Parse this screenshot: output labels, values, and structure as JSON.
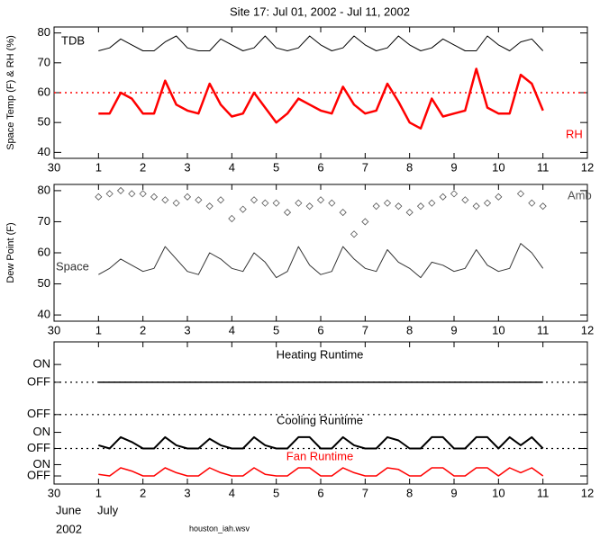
{
  "chart_data": [
    {
      "type": "line",
      "title": "Site 17: Jul 01, 2002 - Jul 11, 2002",
      "ylabel": "Space Temp (F) & RH (%)",
      "xlim": [
        0,
        12
      ],
      "xticks": [
        {
          "value": 0,
          "label": "30"
        },
        1,
        2,
        3,
        4,
        5,
        6,
        7,
        8,
        9,
        10,
        11,
        12
      ],
      "ylim": [
        38,
        82
      ],
      "yticks": [
        40,
        50,
        60,
        70,
        80
      ],
      "hline": 60,
      "hline_color": "#ff0000",
      "x": [
        1,
        1.25,
        1.5,
        1.75,
        2,
        2.25,
        2.5,
        2.75,
        3,
        3.25,
        3.5,
        3.75,
        4,
        4.25,
        4.5,
        4.75,
        5,
        5.25,
        5.5,
        5.75,
        6,
        6.25,
        6.5,
        6.75,
        7,
        7.25,
        7.5,
        7.75,
        8,
        8.25,
        8.5,
        8.75,
        9,
        9.25,
        9.5,
        9.75,
        10,
        10.25,
        10.5,
        10.75,
        11
      ],
      "series": [
        {
          "name": "TDB",
          "color": "#000000",
          "values": [
            74,
            75,
            78,
            76,
            74,
            74,
            77,
            79,
            75,
            74,
            74,
            78,
            76,
            74,
            75,
            79,
            75,
            74,
            75,
            79,
            76,
            74,
            75,
            79,
            76,
            74,
            75,
            79,
            76,
            74,
            75,
            78,
            76,
            74,
            74,
            79,
            76,
            74,
            77,
            78,
            74
          ]
        },
        {
          "name": "RH",
          "color": "#ff0000",
          "values": [
            53,
            53,
            60,
            58,
            53,
            53,
            64,
            56,
            54,
            53,
            63,
            56,
            52,
            53,
            60,
            55,
            50,
            53,
            58,
            56,
            54,
            53,
            62,
            56,
            53,
            54,
            63,
            57,
            50,
            48,
            58,
            52,
            53,
            54,
            68,
            55,
            53,
            53,
            66,
            63,
            54
          ]
        }
      ]
    },
    {
      "type": "line",
      "ylabel": "Dew Point (F)",
      "xlim": [
        0,
        12
      ],
      "xticks": [
        {
          "value": 0,
          "label": "30"
        },
        1,
        2,
        3,
        4,
        5,
        6,
        7,
        8,
        9,
        10,
        11,
        12
      ],
      "ylim": [
        38,
        82
      ],
      "yticks": [
        40,
        50,
        60,
        70,
        80
      ],
      "x": [
        1,
        1.25,
        1.5,
        1.75,
        2,
        2.25,
        2.5,
        2.75,
        3,
        3.25,
        3.5,
        3.75,
        4,
        4.25,
        4.5,
        4.75,
        5,
        5.25,
        5.5,
        5.75,
        6,
        6.25,
        6.5,
        6.75,
        7,
        7.25,
        7.5,
        7.75,
        8,
        8.25,
        8.5,
        8.75,
        9,
        9.25,
        9.5,
        9.75,
        10,
        10.25,
        10.5,
        10.75,
        11
      ],
      "series": [
        {
          "name": "Amb",
          "color": "#555555",
          "style": "markers",
          "values": [
            78,
            79,
            80,
            79,
            79,
            78,
            77,
            76,
            78,
            77,
            75,
            77,
            71,
            74,
            77,
            76,
            76,
            73,
            76,
            75,
            77,
            76,
            73,
            66,
            70,
            75,
            76,
            75,
            73,
            75,
            76,
            78,
            79,
            77,
            75,
            76,
            78,
            null,
            79,
            76,
            75
          ]
        },
        {
          "name": "Space",
          "color": "#333333",
          "style": "line",
          "values": [
            53,
            55,
            58,
            56,
            54,
            55,
            62,
            58,
            54,
            53,
            60,
            58,
            55,
            54,
            60,
            57,
            52,
            54,
            62,
            56,
            53,
            54,
            62,
            58,
            55,
            54,
            61,
            57,
            55,
            52,
            57,
            56,
            54,
            55,
            61,
            56,
            54,
            55,
            63,
            60,
            55
          ]
        }
      ]
    },
    {
      "type": "line",
      "xlim": [
        0,
        12
      ],
      "xticks": [
        {
          "value": 0,
          "label": "30"
        },
        1,
        2,
        3,
        4,
        5,
        6,
        7,
        8,
        9,
        10,
        11,
        12
      ],
      "ylim": [
        0,
        8.8
      ],
      "yticks": [
        {
          "value": 0.5,
          "label": "OFF"
        },
        {
          "value": 1.2,
          "label": "ON"
        },
        {
          "value": 2.2,
          "label": "OFF"
        },
        {
          "value": 3.2,
          "label": "ON"
        },
        {
          "value": 4.3,
          "label": "OFF"
        },
        {
          "value": 6.3,
          "label": "OFF"
        },
        {
          "value": 7.4,
          "label": "ON"
        }
      ],
      "hlines": [
        6.3,
        4.3,
        2.2
      ],
      "month_labels": [
        "June",
        "July"
      ],
      "year_label": "2002",
      "annotation": "houston_iah.wsv",
      "x": [
        1,
        1.25,
        1.5,
        1.75,
        2,
        2.25,
        2.5,
        2.75,
        3,
        3.25,
        3.5,
        3.75,
        4,
        4.25,
        4.5,
        4.75,
        5,
        5.25,
        5.5,
        5.75,
        6,
        6.25,
        6.5,
        6.75,
        7,
        7.25,
        7.5,
        7.75,
        8,
        8.25,
        8.5,
        8.75,
        9,
        9.25,
        9.5,
        9.75,
        10,
        10.25,
        10.5,
        10.75,
        11
      ],
      "series": [
        {
          "name": "Heating Runtime",
          "color": "#000000",
          "values": [
            6.3,
            6.3,
            6.3,
            6.3,
            6.3,
            6.3,
            6.3,
            6.3,
            6.3,
            6.3,
            6.3,
            6.3,
            6.3,
            6.3,
            6.3,
            6.3,
            6.3,
            6.3,
            6.3,
            6.3,
            6.3,
            6.3,
            6.3,
            6.3,
            6.3,
            6.3,
            6.3,
            6.3,
            6.3,
            6.3,
            6.3,
            6.3,
            6.3,
            6.3,
            6.3,
            6.3,
            6.3,
            6.3,
            6.3,
            6.3,
            6.3
          ]
        },
        {
          "name": "Cooling Runtime",
          "color": "#000000",
          "values": [
            2.4,
            2.2,
            2.9,
            2.6,
            2.2,
            2.2,
            2.9,
            2.4,
            2.2,
            2.2,
            2.8,
            2.4,
            2.2,
            2.2,
            2.9,
            2.4,
            2.2,
            2.2,
            2.9,
            2.9,
            2.2,
            2.2,
            2.9,
            2.4,
            2.2,
            2.2,
            2.9,
            2.7,
            2.2,
            2.2,
            2.9,
            2.9,
            2.2,
            2.2,
            2.9,
            2.9,
            2.2,
            2.9,
            2.4,
            2.9,
            2.2
          ]
        },
        {
          "name": "Fan Runtime",
          "color": "#ff0000",
          "values": [
            0.6,
            0.5,
            1.0,
            0.8,
            0.5,
            0.5,
            1.0,
            0.7,
            0.5,
            0.5,
            1.0,
            0.7,
            0.5,
            0.5,
            1.0,
            0.6,
            0.5,
            0.5,
            1.0,
            1.0,
            0.5,
            0.5,
            1.0,
            0.7,
            0.5,
            0.5,
            1.0,
            0.9,
            0.5,
            0.5,
            1.0,
            1.0,
            0.5,
            0.5,
            1.0,
            1.0,
            0.5,
            1.0,
            0.7,
            1.0,
            0.5
          ]
        }
      ]
    }
  ]
}
